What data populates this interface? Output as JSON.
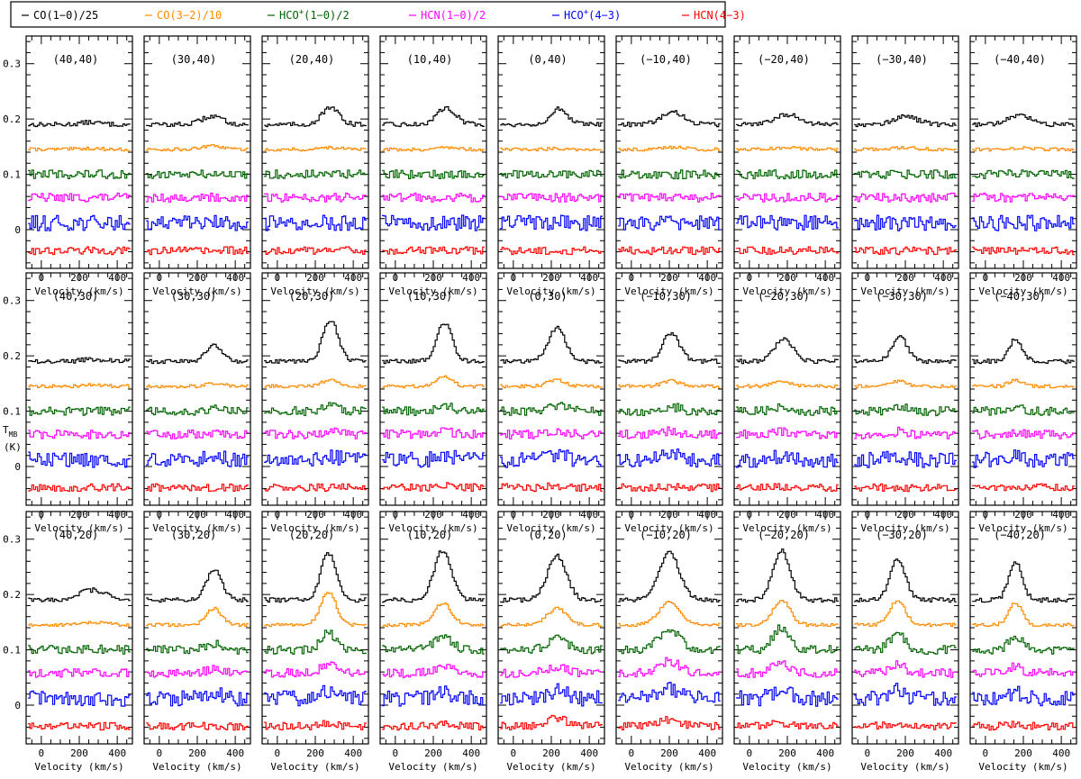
{
  "chart_data": {
    "type": "line",
    "grid": "spectral-map",
    "rows": 3,
    "cols": 9,
    "legend": [
      {
        "text_parts": [
          {
            "t": "CO(1−0)/25",
            "sup": false
          }
        ],
        "color": "#000000"
      },
      {
        "text_parts": [
          {
            "t": "CO(3−2)/10",
            "sup": false
          }
        ],
        "color": "#ff8c00"
      },
      {
        "text_parts": [
          {
            "t": "HCO",
            "sup": false
          },
          {
            "t": "+",
            "sup": true
          },
          {
            "t": "(1−0)/2",
            "sup": false
          }
        ],
        "color": "#006400"
      },
      {
        "text_parts": [
          {
            "t": "HCN(1−0)/2",
            "sup": false
          }
        ],
        "color": "#ff00ff"
      },
      {
        "text_parts": [
          {
            "t": "HCO",
            "sup": false
          },
          {
            "t": "+",
            "sup": true
          },
          {
            "t": "(4−3)",
            "sup": false
          }
        ],
        "color": "#0000ff"
      },
      {
        "text_parts": [
          {
            "t": "HCN(4−3)",
            "sup": false
          }
        ],
        "color": "#ff0000"
      }
    ],
    "xlabel": "Velocity (km/s)",
    "ylabel_main": "T",
    "ylabel_sub": "MB",
    "ylabel_unit": "(K)",
    "xlim": [
      -80,
      480
    ],
    "ylim": [
      -0.07,
      0.35
    ],
    "x_ticks": [
      0,
      200,
      400
    ],
    "y_ticks": [
      0,
      0.1,
      0.2,
      0.3
    ],
    "y_tick_labels": [
      "0",
      "0.1",
      "0.2",
      "0.3"
    ],
    "series_offsets": [
      0.19,
      0.145,
      0.1,
      0.058,
      0.012,
      -0.038
    ],
    "series_noise": [
      0.004,
      0.003,
      0.008,
      0.008,
      0.014,
      0.007
    ],
    "panels": [
      {
        "label": "(40,40)",
        "peaks": [
          0.004,
          0.002,
          0.0,
          0.0,
          0.0,
          0.0
        ],
        "center": 260,
        "width": 55,
        "co32": true
      },
      {
        "label": "(30,40)",
        "peaks": [
          0.015,
          0.006,
          0.0,
          0.0,
          0.0,
          0.0
        ],
        "center": 280,
        "width": 55,
        "co32": true
      },
      {
        "label": "(20,40)",
        "peaks": [
          0.03,
          0.004,
          0.0,
          0.0,
          0.0,
          0.0
        ],
        "center": 280,
        "width": 45,
        "co32": true
      },
      {
        "label": "(10,40)",
        "peaks": [
          0.03,
          0.004,
          0.0,
          0.0,
          0.0,
          0.0
        ],
        "center": 270,
        "width": 50,
        "co32": true
      },
      {
        "label": "(0,40)",
        "peaks": [
          0.028,
          0.002,
          0.0,
          0.0,
          0.0,
          0.0
        ],
        "center": 240,
        "width": 45,
        "co32": true
      },
      {
        "label": "(−10,40)",
        "peaks": [
          0.022,
          0.004,
          0.0,
          0.0,
          0.0,
          0.0
        ],
        "center": 220,
        "width": 60,
        "co32": true
      },
      {
        "label": "(−20,40)",
        "peaks": [
          0.018,
          0.003,
          0.0,
          0.0,
          0.0,
          0.0
        ],
        "center": 200,
        "width": 65,
        "co32": true
      },
      {
        "label": "(−30,40)",
        "peaks": [
          0.014,
          0.003,
          0.0,
          0.0,
          0.0,
          0.0
        ],
        "center": 200,
        "width": 65,
        "co32": true
      },
      {
        "label": "(−40,40)",
        "peaks": [
          0.016,
          0.003,
          0.0,
          0.0,
          0.0,
          0.0
        ],
        "center": 180,
        "width": 60,
        "co32": true
      },
      {
        "label": "(40,30)",
        "peaks": [
          0.004,
          0.002,
          0.0,
          0.0,
          0.0,
          0.0
        ],
        "center": 280,
        "width": 60,
        "co32": true
      },
      {
        "label": "(30,30)",
        "peaks": [
          0.03,
          0.006,
          0.004,
          0.003,
          0.004,
          0.0
        ],
        "center": 290,
        "width": 40,
        "co32": true
      },
      {
        "label": "(20,30)",
        "peaks": [
          0.075,
          0.012,
          0.008,
          0.006,
          0.008,
          0.0
        ],
        "center": 280,
        "width": 40,
        "co32": true
      },
      {
        "label": "(10,30)",
        "peaks": [
          0.07,
          0.018,
          0.01,
          0.006,
          0.01,
          0.004
        ],
        "center": 260,
        "width": 40,
        "co32": true
      },
      {
        "label": "(0,30)",
        "peaks": [
          0.06,
          0.012,
          0.01,
          0.006,
          0.01,
          0.003
        ],
        "center": 230,
        "width": 45,
        "co32": true
      },
      {
        "label": "(−10,30)",
        "peaks": [
          0.05,
          0.01,
          0.008,
          0.006,
          0.008,
          0.002
        ],
        "center": 210,
        "width": 45,
        "co32": true
      },
      {
        "label": "(−20,30)",
        "peaks": [
          0.04,
          0.008,
          0.006,
          0.005,
          0.006,
          0.0
        ],
        "center": 180,
        "width": 50,
        "co32": true
      },
      {
        "label": "(−30,30)",
        "peaks": [
          0.045,
          0.01,
          0.008,
          0.005,
          0.006,
          0.0
        ],
        "center": 170,
        "width": 40,
        "co32": true
      },
      {
        "label": "(−40,30)",
        "peaks": [
          0.04,
          0.012,
          0.006,
          0.004,
          0.006,
          0.0
        ],
        "center": 160,
        "width": 35,
        "co32": true
      },
      {
        "label": "(40,20)",
        "peaks": [
          0.018,
          0.004,
          0.002,
          0.002,
          0.0,
          0.0
        ],
        "center": 270,
        "width": 70,
        "co32": true
      },
      {
        "label": "(30,20)",
        "peaks": [
          0.055,
          0.03,
          0.012,
          0.008,
          0.008,
          0.0
        ],
        "center": 290,
        "width": 40,
        "co32": true
      },
      {
        "label": "(20,20)",
        "peaks": [
          0.085,
          0.06,
          0.03,
          0.015,
          0.012,
          0.004
        ],
        "center": 270,
        "width": 40,
        "co32": true
      },
      {
        "label": "(10,20)",
        "peaks": [
          0.09,
          0.04,
          0.025,
          0.012,
          0.012,
          0.004
        ],
        "center": 250,
        "width": 45,
        "co32": true
      },
      {
        "label": "(0,20)",
        "peaks": [
          0.08,
          0.03,
          0.02,
          0.012,
          0.015,
          0.014
        ],
        "center": 230,
        "width": 50,
        "co32": true
      },
      {
        "label": "(−10,20)",
        "peaks": [
          0.085,
          0.04,
          0.035,
          0.022,
          0.02,
          0.012
        ],
        "center": 200,
        "width": 55,
        "co32": true
      },
      {
        "label": "(−20,20)",
        "peaks": [
          0.09,
          0.045,
          0.04,
          0.018,
          0.018,
          0.006
        ],
        "center": 170,
        "width": 45,
        "co32": true
      },
      {
        "label": "(−30,20)",
        "peaks": [
          0.075,
          0.045,
          0.028,
          0.015,
          0.016,
          0.004
        ],
        "center": 160,
        "width": 40,
        "co32": true
      },
      {
        "label": "(−40,20)",
        "peaks": [
          0.07,
          0.04,
          0.025,
          0.012,
          0.012,
          0.004
        ],
        "center": 160,
        "width": 35,
        "co32": true
      }
    ]
  }
}
